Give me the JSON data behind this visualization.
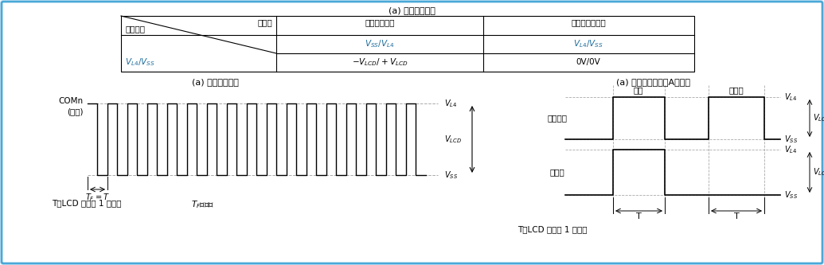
{
  "bg_color": "#eaf4fb",
  "border_color": "#4aa8d8",
  "title_table": "(a) 静态显示模式",
  "left_title": "(a) 静态显示模式",
  "right_title": "(a) 静态显示模式（A波形）",
  "col1_header_top": "段信号",
  "col1_header_bot": "公共信号",
  "col2_header": "选择信号电平",
  "col3_header": "非选择信号电平",
  "row1_col2": "$V_{SS}/V_{L4}$",
  "row1_col3": "$V_{L4}/V_{SS}$",
  "row2_col1": "$V_{L4}/V_{SS}$",
  "row2_col2": "$-V_{LCD}/+V_{LCD}$",
  "row2_col3": "0V/0V",
  "com_label1": "COMn",
  "com_label2": "(静态)",
  "tf_label": "$T_F = T$",
  "bottom_left1": "T：LCD 时钟的 1 个周期",
  "bottom_left2": "$T_F$：帧频",
  "select_label": "选择",
  "nonselect_label": "非选择",
  "com_signal_label": "公共信号",
  "seg_signal_label": "段信号",
  "bottom_right": "T：LCD 时钟的 1 个周期"
}
